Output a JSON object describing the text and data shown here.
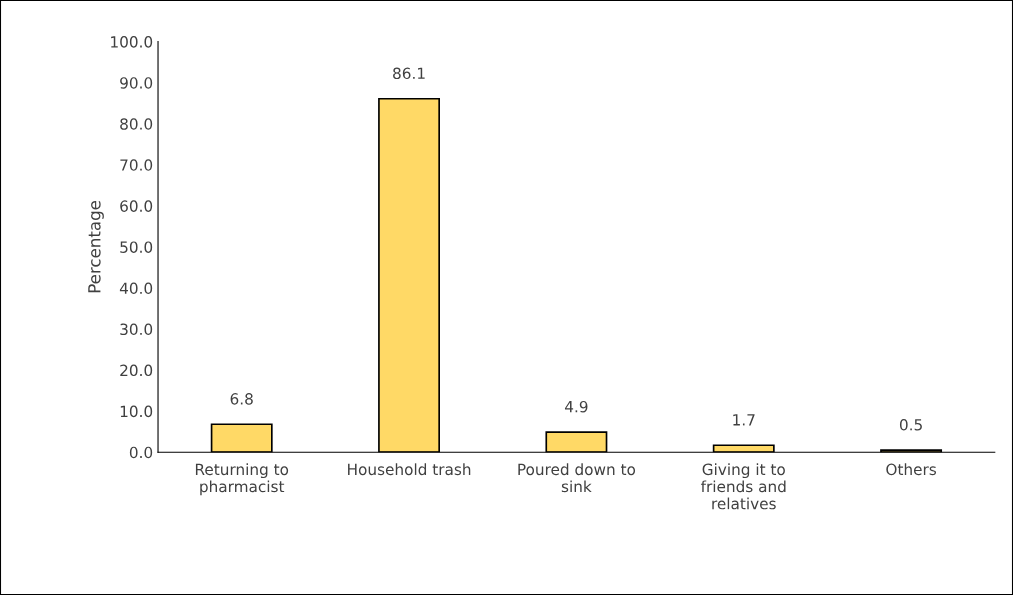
{
  "chart_data": {
    "type": "bar",
    "categories": [
      "Returning to pharmacist",
      "Household trash",
      "Poured down to sink",
      "Giving it to friends and relatives",
      "Others"
    ],
    "values": [
      6.8,
      86.1,
      4.9,
      1.7,
      0.5
    ],
    "color": "#ffd966",
    "ylabel": "Percentage",
    "ylim": [
      0,
      100
    ],
    "yticks": [
      {
        "value": 0,
        "label": "0.0"
      },
      {
        "value": 10,
        "label": "10.0"
      },
      {
        "value": 20,
        "label": "20.0"
      },
      {
        "value": 30,
        "label": "30.0"
      },
      {
        "value": 40,
        "label": "40.0"
      },
      {
        "value": 50,
        "label": "50.0"
      },
      {
        "value": 60,
        "label": "60.0"
      },
      {
        "value": 70,
        "label": "70.0"
      },
      {
        "value": 80,
        "label": "80.0"
      },
      {
        "value": 90,
        "label": "90.0"
      },
      {
        "value": 100,
        "label": "100.0"
      }
    ],
    "data_labels": true,
    "grid": false,
    "legend": false
  }
}
